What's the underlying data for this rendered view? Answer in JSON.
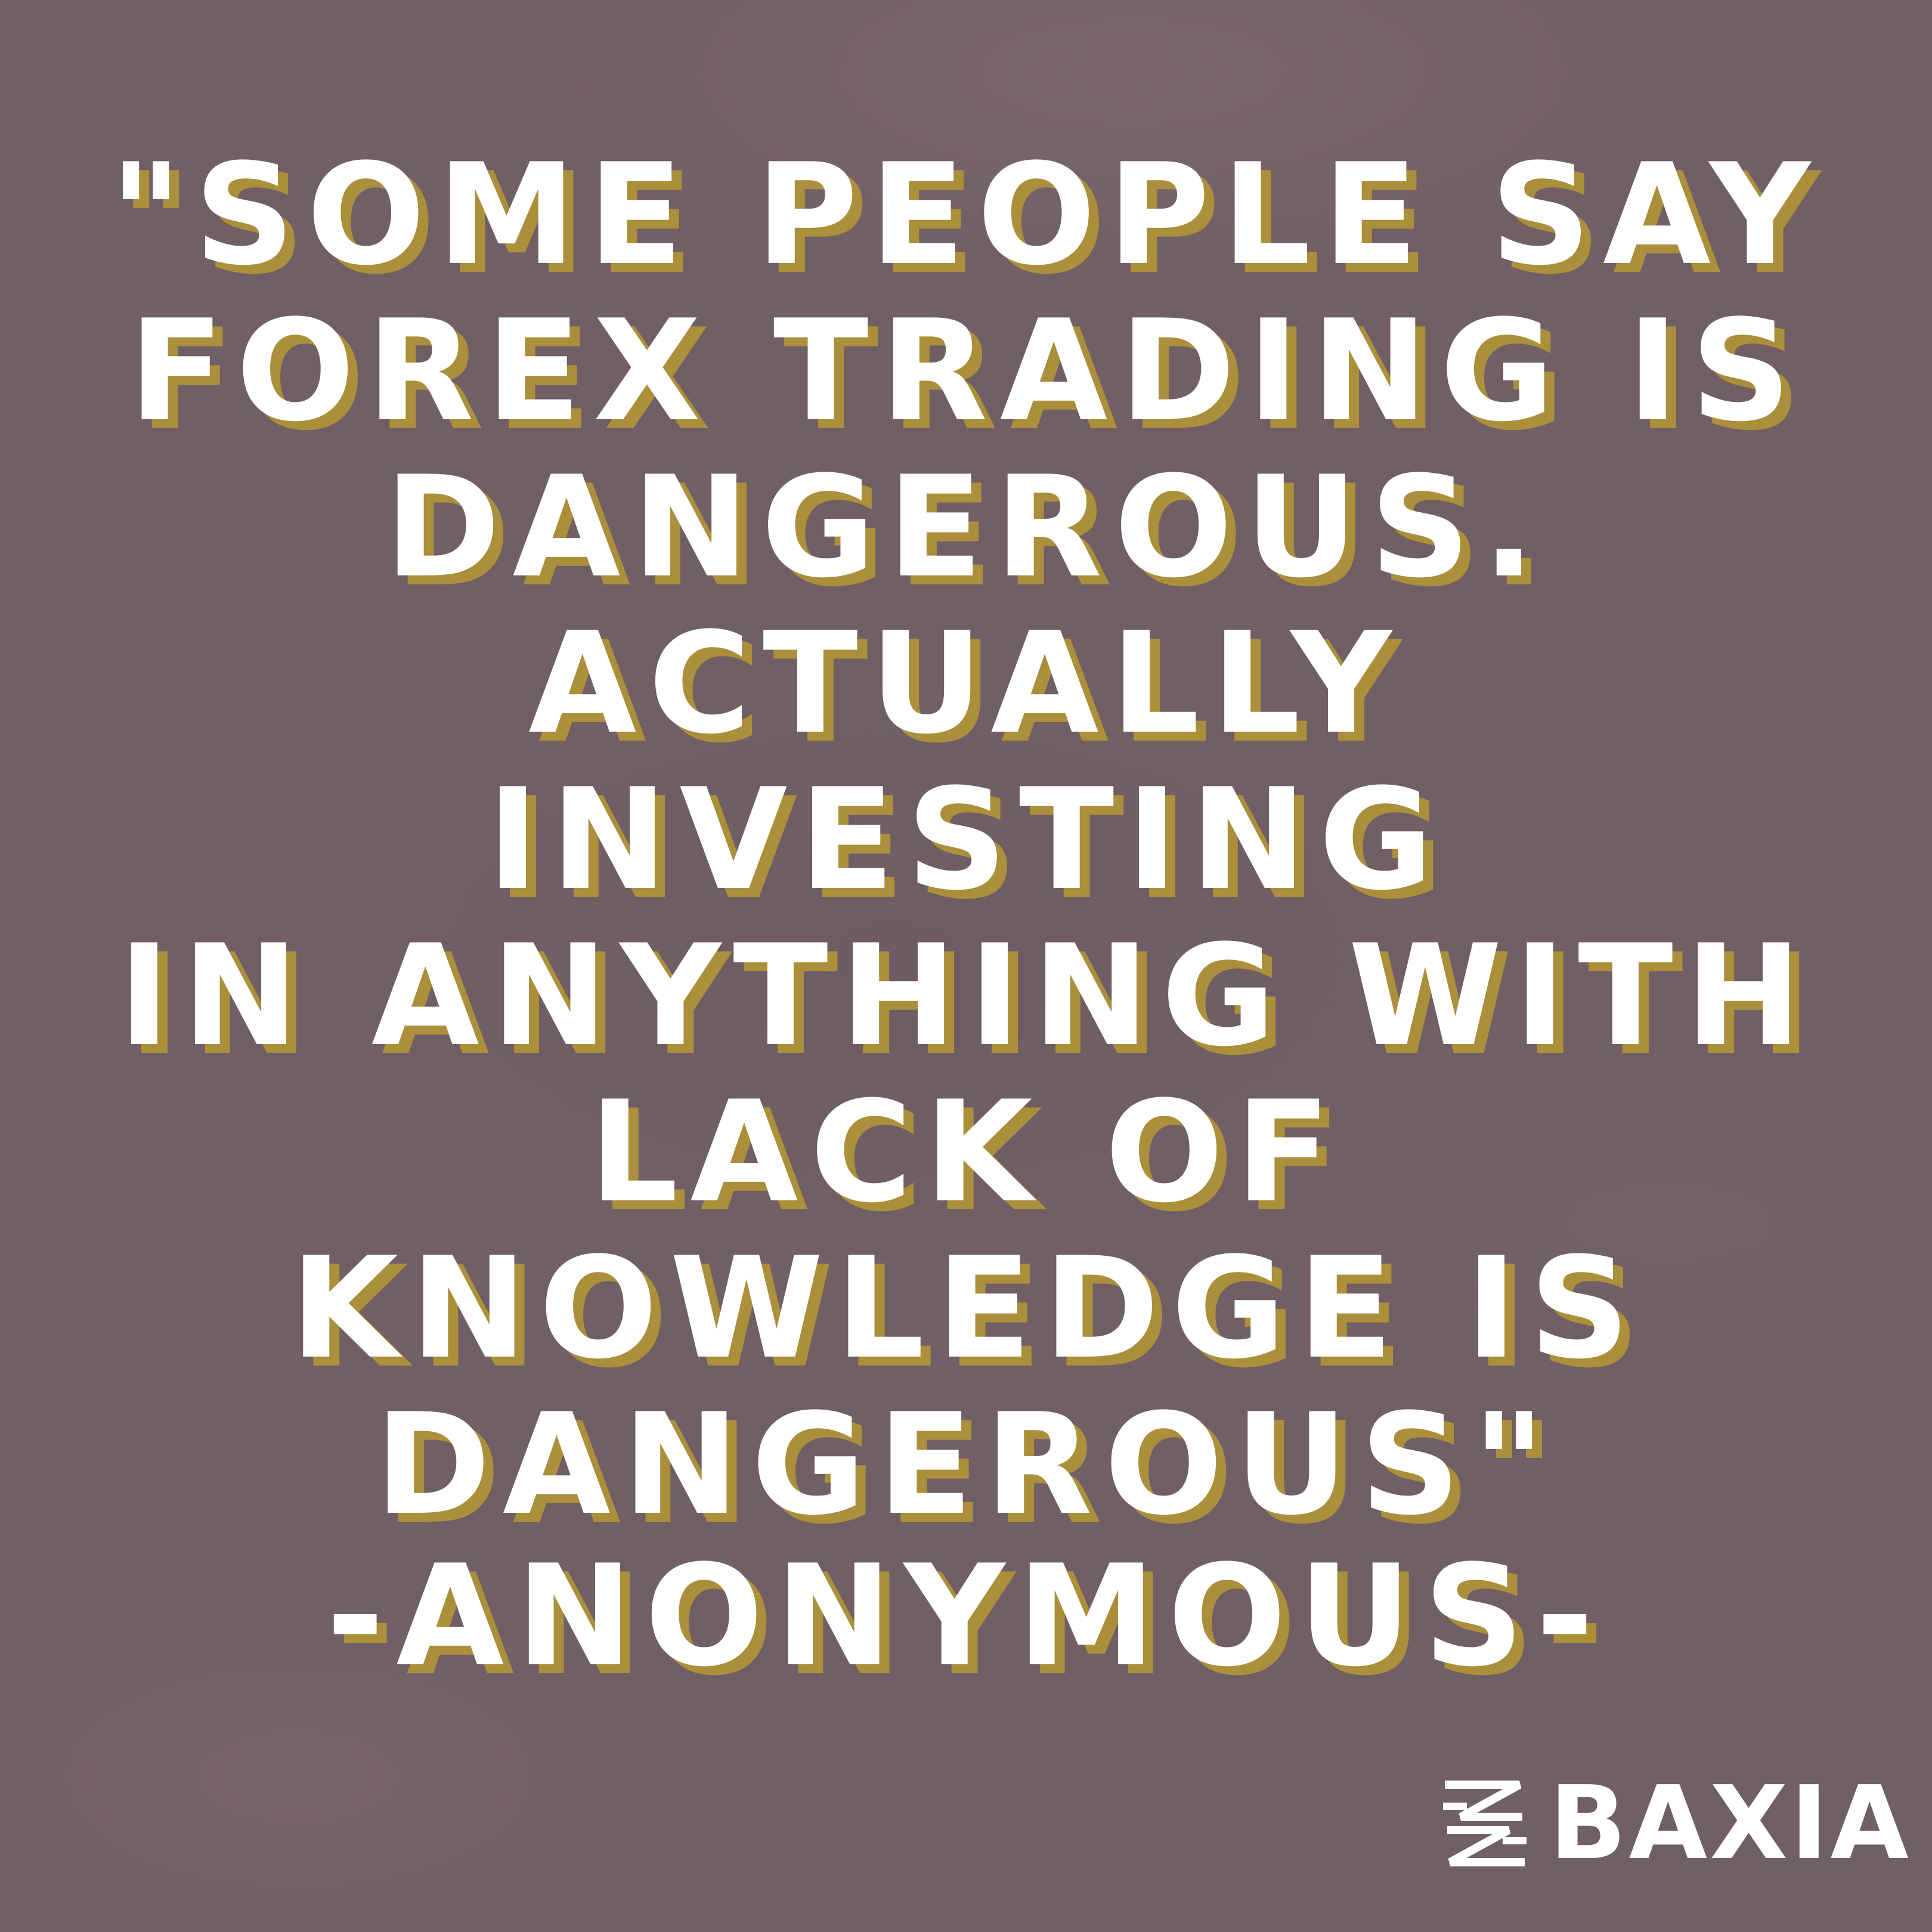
{
  "quote": {
    "text": "\"SOME PEOPLE SAY\nFOREX TRADING IS\nDANGEROUS.\nACTUALLY INVESTING\nIN ANYTHING WITH\nLACK OF\nKNOWLEDGE IS\nDANGEROUS\""
  },
  "author": {
    "text": "-ANONYMOUS-"
  },
  "brand": {
    "name": "BAXIA",
    "logo_icon": "baxia-logo-icon"
  },
  "colors": {
    "background": "#715f66",
    "text": "#ffffff",
    "shadow": "#ab8f3a"
  }
}
